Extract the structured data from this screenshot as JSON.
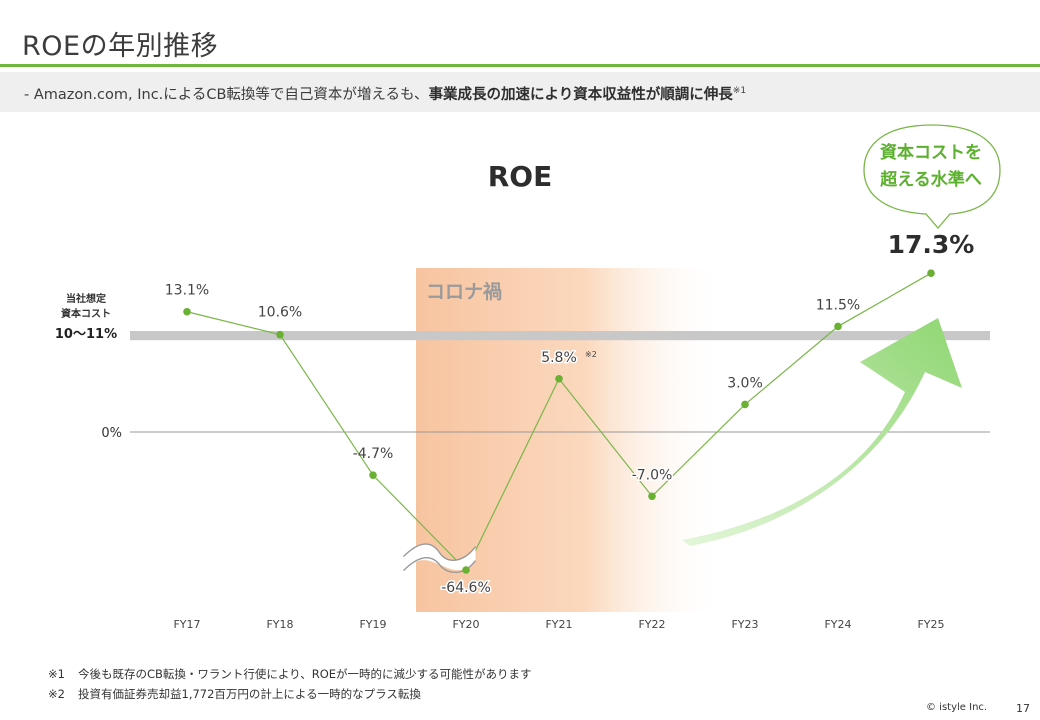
{
  "header": {
    "title": "ROEの年別推移",
    "subtitle_prefix": "-  Amazon.com, Inc.によるCB転換等で自己資本が増えるも、",
    "subtitle_bold": "事業成長の加速により資本収益性が順調に伸長",
    "subtitle_mark": "※1"
  },
  "chart_data": {
    "type": "line",
    "title": "ROE",
    "categories": [
      "FY17",
      "FY18",
      "FY19",
      "FY20",
      "FY21",
      "FY22",
      "FY23",
      "FY24",
      "FY25"
    ],
    "series": [
      {
        "values": [
          13.1,
          10.6,
          -4.7,
          -64.6,
          5.8,
          -7.0,
          3.0,
          11.5,
          17.3
        ]
      }
    ],
    "data_labels": [
      "13.1%",
      "10.6%",
      "-4.7%",
      "-64.6%",
      "5.8%",
      "-7.0%",
      "3.0%",
      "11.5%",
      "17.3%"
    ],
    "data_label_marks": {
      "4": "※2"
    },
    "zero_label": "0%",
    "axis_break": {
      "between_values": [
        -4.7,
        -64.6
      ],
      "note": "wavy break symbol on FY20 segment"
    },
    "cost_of_capital_band": {
      "label_line1": "当社想定",
      "label_line2": "資本コスト",
      "label_line3": "10～11%",
      "range": [
        10,
        11
      ]
    },
    "highlight_period": {
      "label": "コロナ禍",
      "from": "FY20",
      "to": "FY22"
    },
    "callout": {
      "line1": "資本コストを",
      "line2": "超える水準へ",
      "color": "#5bb02e"
    },
    "colors": {
      "line": "#7ab648",
      "marker": "#6ab033",
      "band": "#c8c8c8",
      "covid_fill": "#f8c9a4",
      "arrow": "#a6df8e",
      "accent": "#6fb83d"
    }
  },
  "footnotes": [
    {
      "mark": "※1",
      "text": "今後も既存のCB転換・ワラント行使により、ROEが一時的に減少する可能性があります"
    },
    {
      "mark": "※2",
      "text": "投資有価証券売却益1,772百万円の計上による一時的なプラス転換"
    }
  ],
  "footer": {
    "copyright": "© istyle Inc.",
    "page_number": "17"
  }
}
